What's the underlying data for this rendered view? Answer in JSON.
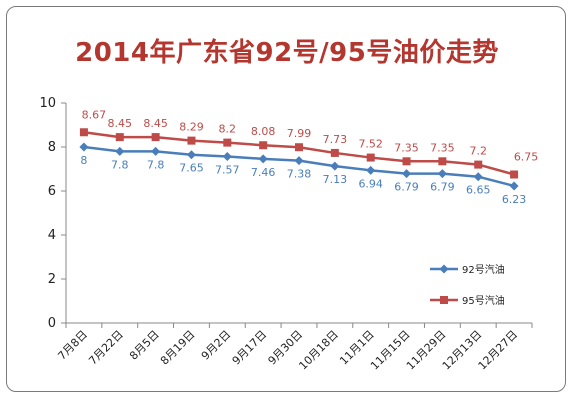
{
  "chart_data": {
    "type": "line",
    "title": "2014年广东省92号/95号油价走势",
    "categories": [
      "7月8日",
      "7月22日",
      "8月5日",
      "8月19日",
      "9月2日",
      "9月17日",
      "9月30日",
      "10月18日",
      "11月1日",
      "11月15日",
      "11月29日",
      "12月13日",
      "12月27日"
    ],
    "series": [
      {
        "name": "92号汽油",
        "color": "#4a7ebb",
        "marker": "diamond",
        "values": [
          8,
          7.8,
          7.8,
          7.65,
          7.57,
          7.46,
          7.38,
          7.13,
          6.94,
          6.79,
          6.79,
          6.65,
          6.23
        ],
        "labels": [
          "8",
          "7.8",
          "7.8",
          "7.65",
          "7.57",
          "7.46",
          "7.38",
          "7.13",
          "6.94",
          "6.79",
          "6.79",
          "6.65",
          "6.23"
        ]
      },
      {
        "name": "95号汽油",
        "color": "#be4b48",
        "marker": "square",
        "values": [
          8.67,
          8.45,
          8.45,
          8.29,
          8.2,
          8.08,
          7.99,
          7.73,
          7.52,
          7.35,
          7.35,
          7.2,
          6.75
        ],
        "labels": [
          "8.67",
          "8.45",
          "8.45",
          "8.29",
          "8.2",
          "8.08",
          "7.99",
          "7.73",
          "7.52",
          "7.35",
          "7.35",
          "7.2",
          "6.75"
        ]
      }
    ],
    "ylim": [
      0,
      10
    ],
    "yticks": [
      "0",
      "2",
      "4",
      "6",
      "8",
      "10"
    ],
    "grid": false,
    "legend_position": "bottom-right",
    "xlabel": "",
    "ylabel": ""
  }
}
